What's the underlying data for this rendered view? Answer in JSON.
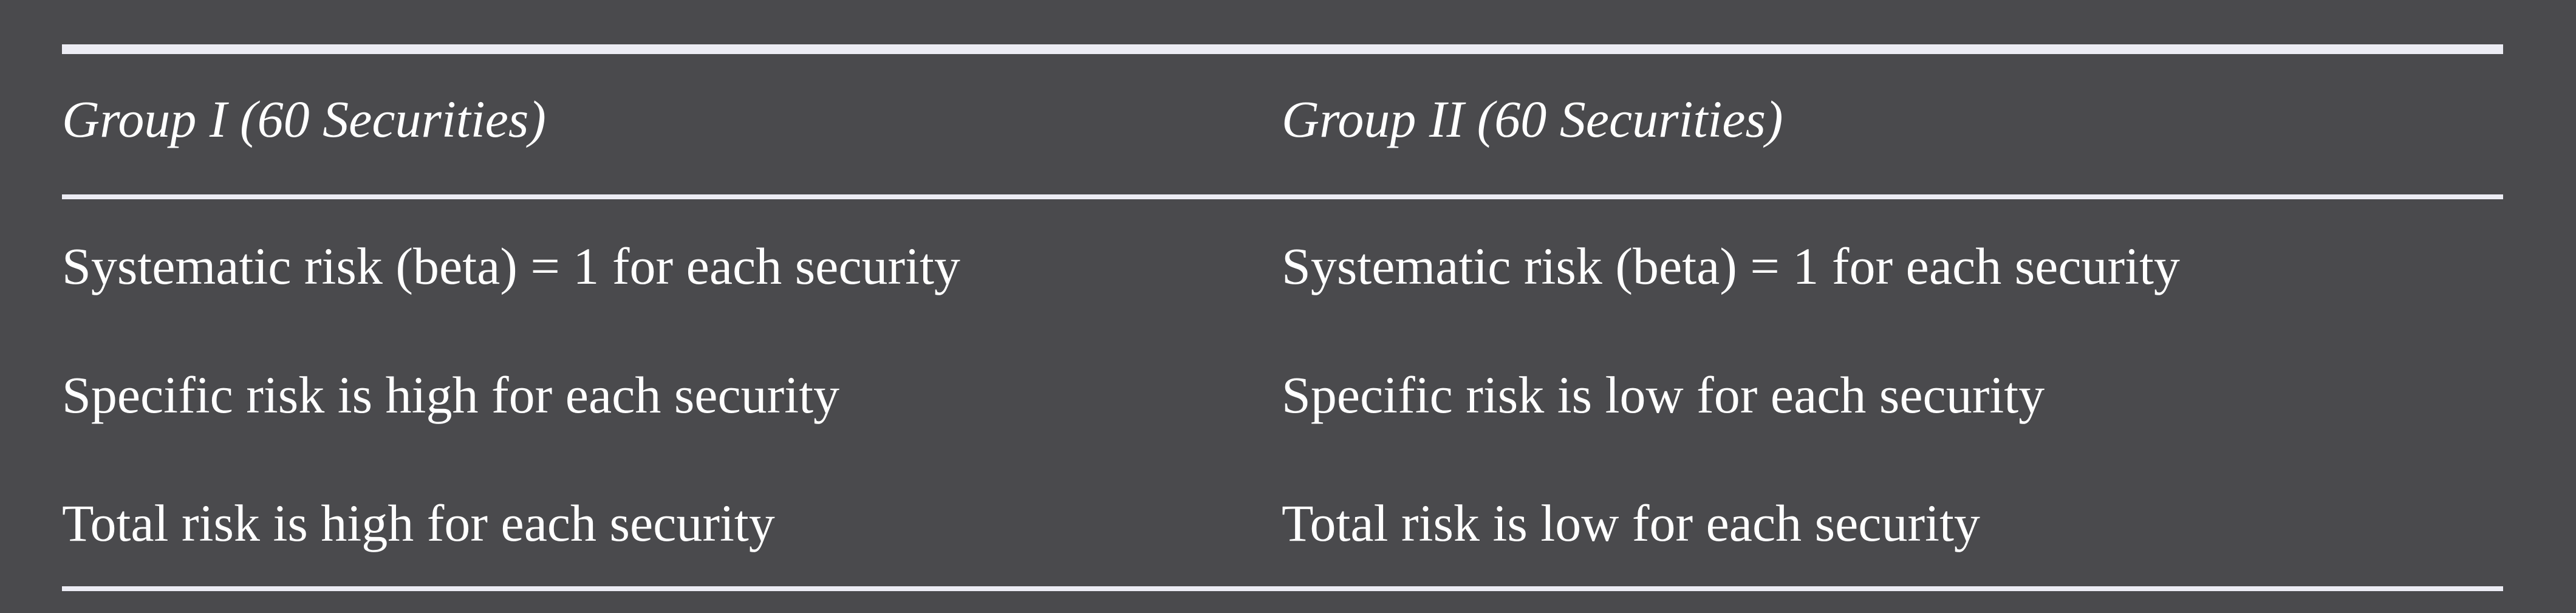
{
  "table": {
    "headers": [
      "Group I (60 Securities)",
      "Group II (60 Securities)"
    ],
    "rows": [
      [
        "Systematic risk (beta) = 1 for each security",
        "Systematic risk (beta) = 1 for each security"
      ],
      [
        "Specific risk is high for each security",
        "Specific risk is low for each security"
      ],
      [
        "Total risk is high for each security",
        "Total risk is low for each security"
      ]
    ]
  },
  "colors": {
    "background": "#4a4a4d",
    "text": "#ffffff",
    "rule": "#ececf4"
  }
}
